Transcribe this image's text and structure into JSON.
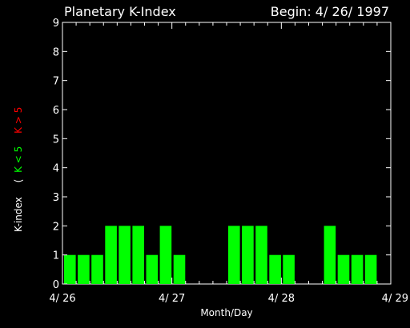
{
  "chart_data": {
    "type": "bar",
    "title": "Planetary K-Index",
    "begin_label": "Begin: 4/ 26/ 1997",
    "xlabel": "Month/Day",
    "ylabel_prefix": "K-index",
    "ylabel_open": "(",
    "ylabel_green": "K < 5",
    "ylabel_red": "K > 5",
    "ylim": [
      0,
      9
    ],
    "yticks": [
      "0",
      "1",
      "2",
      "3",
      "4",
      "5",
      "6",
      "7",
      "8",
      "9"
    ],
    "xticks": [
      "4/ 26",
      "4/ 27",
      "4/ 28",
      "4/ 29"
    ],
    "x_unit": "3-hour interval",
    "values": [
      1,
      1,
      1,
      2,
      2,
      2,
      1,
      2,
      1,
      0,
      0,
      0,
      2,
      2,
      2,
      1,
      1,
      0,
      0,
      2,
      1,
      1,
      1,
      0
    ],
    "colors": {
      "low": "#00ff00",
      "high": "#ff0000",
      "axis": "#ffffff",
      "background": "#000000"
    },
    "grid": false
  }
}
